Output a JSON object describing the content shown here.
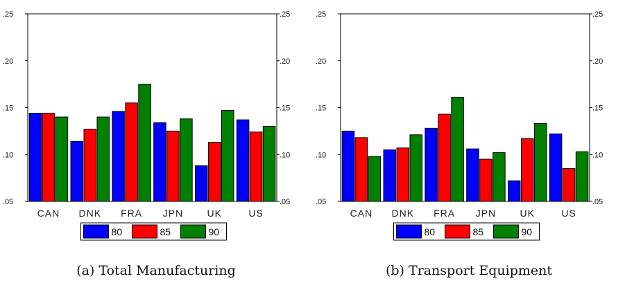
{
  "chart_data": [
    {
      "type": "bar",
      "title": "",
      "caption": "(a) Total Manufacturing",
      "xlabel": "",
      "ylabel": "",
      "ylim": [
        0.05,
        0.25
      ],
      "yticks": [
        ".05",
        ".10",
        ".15",
        ".20",
        ".25"
      ],
      "ytick_values": [
        0.05,
        0.1,
        0.15,
        0.2,
        0.25
      ],
      "grid": false,
      "legend_position": "bottom-center",
      "categories": [
        "CAN",
        "DNK",
        "FRA",
        "JPN",
        "UK",
        "US"
      ],
      "series": [
        {
          "name": "80",
          "color": "#0000ff",
          "values": [
            0.144,
            0.114,
            0.146,
            0.134,
            0.088,
            0.137
          ]
        },
        {
          "name": "85",
          "color": "#ff0000",
          "values": [
            0.144,
            0.127,
            0.155,
            0.125,
            0.113,
            0.124
          ]
        },
        {
          "name": "90",
          "color": "#008000",
          "values": [
            0.14,
            0.14,
            0.175,
            0.138,
            0.147,
            0.13
          ]
        }
      ]
    },
    {
      "type": "bar",
      "title": "",
      "caption": "(b) Transport Equipment",
      "xlabel": "",
      "ylabel": "",
      "ylim": [
        0.05,
        0.25
      ],
      "yticks": [
        ".05",
        ".10",
        ".15",
        ".20",
        ".25"
      ],
      "ytick_values": [
        0.05,
        0.1,
        0.15,
        0.2,
        0.25
      ],
      "grid": false,
      "legend_position": "bottom-center",
      "categories": [
        "CAN",
        "DNK",
        "FRA",
        "JPN",
        "UK",
        "US"
      ],
      "series": [
        {
          "name": "80",
          "color": "#0000ff",
          "values": [
            0.125,
            0.105,
            0.128,
            0.106,
            0.072,
            0.122
          ]
        },
        {
          "name": "85",
          "color": "#ff0000",
          "values": [
            0.118,
            0.107,
            0.143,
            0.095,
            0.117,
            0.085
          ]
        },
        {
          "name": "90",
          "color": "#008000",
          "values": [
            0.098,
            0.121,
            0.161,
            0.102,
            0.133,
            0.103
          ]
        }
      ]
    }
  ]
}
